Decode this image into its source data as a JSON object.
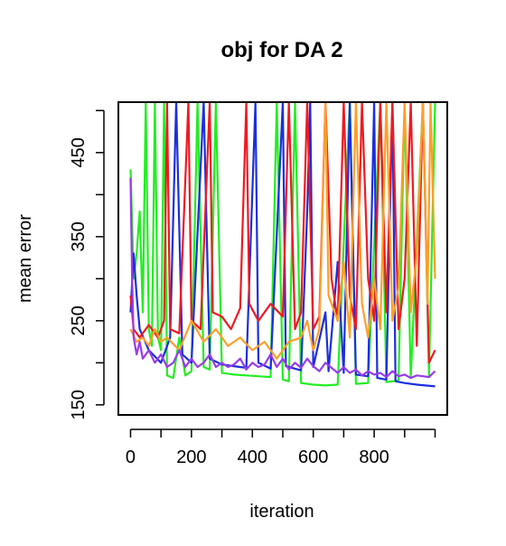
{
  "chart_data": {
    "type": "line",
    "title": "obj for DA  2",
    "xlabel": "iteration",
    "ylabel": "mean error",
    "xlim": [
      -40,
      1040
    ],
    "ylim": [
      138,
      510
    ],
    "x_ticks": [
      0,
      200,
      400,
      600,
      800
    ],
    "y_ticks": [
      150,
      250,
      350,
      450
    ],
    "y_minor_ticks": [
      150,
      200,
      250,
      300,
      350,
      400,
      450,
      500
    ],
    "grid": false,
    "legend": "none",
    "series": [
      {
        "color": "#22ee22",
        "values": [
          [
            0,
            430
          ],
          [
            10,
            300
          ],
          [
            20,
            330
          ],
          [
            30,
            380
          ],
          [
            40,
            260
          ],
          [
            50,
            510
          ],
          [
            60,
            240
          ],
          [
            70,
            220
          ],
          [
            80,
            510
          ],
          [
            90,
            230
          ],
          [
            100,
            215
          ],
          [
            110,
            510
          ],
          [
            120,
            185
          ],
          [
            140,
            182
          ],
          [
            160,
            230
          ],
          [
            180,
            185
          ],
          [
            200,
            190
          ],
          [
            220,
            510
          ],
          [
            240,
            195
          ],
          [
            260,
            192
          ],
          [
            280,
            510
          ],
          [
            300,
            188
          ],
          [
            340,
            186
          ],
          [
            380,
            185
          ],
          [
            420,
            184
          ],
          [
            460,
            183
          ],
          [
            480,
            510
          ],
          [
            500,
            180
          ],
          [
            520,
            178
          ],
          [
            540,
            510
          ],
          [
            560,
            176
          ],
          [
            600,
            174
          ],
          [
            640,
            173
          ],
          [
            680,
            174
          ],
          [
            720,
            510
          ],
          [
            740,
            175
          ],
          [
            780,
            176
          ],
          [
            820,
            510
          ],
          [
            840,
            177
          ],
          [
            880,
            179
          ],
          [
            900,
            510
          ],
          [
            920,
            182
          ],
          [
            960,
            510
          ],
          [
            980,
            185
          ],
          [
            1000,
            510
          ]
        ]
      },
      {
        "color": "#1a2fdd",
        "values": [
          [
            0,
            260
          ],
          [
            10,
            330
          ],
          [
            20,
            280
          ],
          [
            30,
            240
          ],
          [
            60,
            215
          ],
          [
            100,
            200
          ],
          [
            130,
            230
          ],
          [
            150,
            510
          ],
          [
            170,
            210
          ],
          [
            200,
            200
          ],
          [
            240,
            510
          ],
          [
            260,
            205
          ],
          [
            300,
            198
          ],
          [
            340,
            196
          ],
          [
            380,
            194
          ],
          [
            410,
            510
          ],
          [
            420,
            200
          ],
          [
            460,
            193
          ],
          [
            500,
            510
          ],
          [
            510,
            196
          ],
          [
            560,
            191
          ],
          [
            580,
            380
          ],
          [
            590,
            510
          ],
          [
            600,
            195
          ],
          [
            640,
            260
          ],
          [
            650,
            190
          ],
          [
            680,
            320
          ],
          [
            700,
            188
          ],
          [
            720,
            510
          ],
          [
            740,
            186
          ],
          [
            780,
            184
          ],
          [
            800,
            510
          ],
          [
            810,
            182
          ],
          [
            840,
            180
          ],
          [
            860,
            510
          ],
          [
            870,
            178
          ],
          [
            900,
            176
          ],
          [
            940,
            174
          ],
          [
            1000,
            172
          ]
        ]
      },
      {
        "color": "#ee1a22",
        "values": [
          [
            0,
            280
          ],
          [
            10,
            240
          ],
          [
            30,
            230
          ],
          [
            60,
            245
          ],
          [
            90,
            230
          ],
          [
            110,
            250
          ],
          [
            120,
            510
          ],
          [
            130,
            240
          ],
          [
            160,
            235
          ],
          [
            190,
            510
          ],
          [
            200,
            250
          ],
          [
            230,
            240
          ],
          [
            260,
            510
          ],
          [
            270,
            260
          ],
          [
            300,
            255
          ],
          [
            330,
            240
          ],
          [
            360,
            265
          ],
          [
            380,
            510
          ],
          [
            390,
            270
          ],
          [
            420,
            250
          ],
          [
            460,
            270
          ],
          [
            500,
            255
          ],
          [
            520,
            510
          ],
          [
            540,
            240
          ],
          [
            560,
            260
          ],
          [
            580,
            510
          ],
          [
            600,
            240
          ],
          [
            620,
            255
          ],
          [
            640,
            510
          ],
          [
            660,
            300
          ],
          [
            680,
            250
          ],
          [
            700,
            510
          ],
          [
            720,
            280
          ],
          [
            740,
            240
          ],
          [
            760,
            510
          ],
          [
            780,
            300
          ],
          [
            800,
            250
          ],
          [
            820,
            510
          ],
          [
            840,
            260
          ],
          [
            860,
            510
          ],
          [
            880,
            240
          ],
          [
            900,
            300
          ],
          [
            920,
            510
          ],
          [
            940,
            220
          ],
          [
            960,
            510
          ],
          [
            980,
            200
          ],
          [
            1000,
            215
          ]
        ]
      },
      {
        "color": "#ff9f2a",
        "values": [
          [
            0,
            240
          ],
          [
            20,
            225
          ],
          [
            40,
            230
          ],
          [
            60,
            220
          ],
          [
            80,
            240
          ],
          [
            100,
            225
          ],
          [
            120,
            230
          ],
          [
            160,
            215
          ],
          [
            200,
            250
          ],
          [
            240,
            225
          ],
          [
            280,
            240
          ],
          [
            320,
            220
          ],
          [
            360,
            230
          ],
          [
            400,
            215
          ],
          [
            440,
            225
          ],
          [
            480,
            205
          ],
          [
            520,
            225
          ],
          [
            560,
            230
          ],
          [
            580,
            250
          ],
          [
            600,
            215
          ],
          [
            620,
            240
          ],
          [
            640,
            510
          ],
          [
            650,
            280
          ],
          [
            680,
            250
          ],
          [
            700,
            320
          ],
          [
            720,
            230
          ],
          [
            740,
            510
          ],
          [
            760,
            270
          ],
          [
            780,
            230
          ],
          [
            800,
            300
          ],
          [
            820,
            240
          ],
          [
            840,
            510
          ],
          [
            860,
            250
          ],
          [
            880,
            290
          ],
          [
            900,
            510
          ],
          [
            920,
            260
          ],
          [
            940,
            330
          ],
          [
            960,
            510
          ],
          [
            975,
            270
          ],
          [
            985,
            510
          ],
          [
            1000,
            300
          ]
        ]
      },
      {
        "color": "#9a3ce8",
        "values": [
          [
            0,
            420
          ],
          [
            5,
            300
          ],
          [
            10,
            230
          ],
          [
            20,
            210
          ],
          [
            30,
            225
          ],
          [
            40,
            205
          ],
          [
            60,
            215
          ],
          [
            80,
            200
          ],
          [
            100,
            210
          ],
          [
            120,
            195
          ],
          [
            140,
            200
          ],
          [
            160,
            215
          ],
          [
            180,
            195
          ],
          [
            200,
            205
          ],
          [
            220,
            195
          ],
          [
            240,
            200
          ],
          [
            260,
            210
          ],
          [
            280,
            195
          ],
          [
            300,
            200
          ],
          [
            320,
            195
          ],
          [
            340,
            198
          ],
          [
            360,
            205
          ],
          [
            380,
            192
          ],
          [
            400,
            200
          ],
          [
            420,
            195
          ],
          [
            440,
            198
          ],
          [
            460,
            210
          ],
          [
            480,
            195
          ],
          [
            500,
            205
          ],
          [
            520,
            192
          ],
          [
            540,
            200
          ],
          [
            560,
            194
          ],
          [
            580,
            205
          ],
          [
            600,
            196
          ],
          [
            620,
            190
          ],
          [
            640,
            200
          ],
          [
            660,
            194
          ],
          [
            680,
            188
          ],
          [
            700,
            195
          ],
          [
            720,
            188
          ],
          [
            740,
            192
          ],
          [
            760,
            185
          ],
          [
            780,
            190
          ],
          [
            800,
            186
          ],
          [
            820,
            188
          ],
          [
            840,
            183
          ],
          [
            860,
            190
          ],
          [
            880,
            184
          ],
          [
            900,
            186
          ],
          [
            920,
            182
          ],
          [
            940,
            185
          ],
          [
            960,
            184
          ],
          [
            980,
            183
          ],
          [
            1000,
            190
          ]
        ]
      }
    ]
  }
}
